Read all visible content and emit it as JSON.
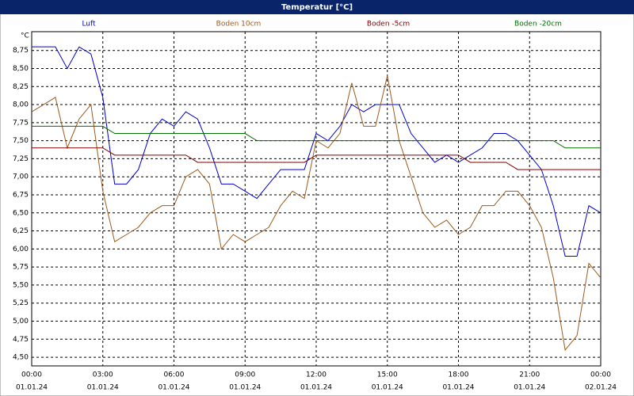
{
  "chart_data": {
    "type": "line",
    "title": "Temperatur [°C]",
    "y_label": "°C",
    "x": [
      0,
      0.5,
      1,
      1.5,
      2,
      2.5,
      3,
      3.5,
      4,
      4.5,
      5,
      5.5,
      6,
      6.5,
      7,
      7.5,
      8,
      8.5,
      9,
      9.5,
      10,
      10.5,
      11,
      11.5,
      12,
      12.5,
      13,
      13.5,
      14,
      14.5,
      15,
      15.5,
      16,
      16.5,
      17,
      17.5,
      18,
      18.5,
      19,
      19.5,
      20,
      20.5,
      21,
      21.5,
      22,
      22.5,
      23,
      23.5,
      24
    ],
    "series": [
      {
        "name": "Luft",
        "color": "#0000cc",
        "values": [
          8.8,
          8.8,
          8.8,
          8.5,
          8.8,
          8.7,
          8.1,
          6.9,
          6.9,
          7.1,
          7.6,
          7.8,
          7.7,
          7.9,
          7.8,
          7.4,
          6.9,
          6.9,
          6.8,
          6.7,
          6.9,
          7.1,
          7.1,
          7.1,
          7.6,
          7.5,
          7.7,
          8.0,
          7.9,
          8.0,
          8.0,
          8.0,
          7.6,
          7.4,
          7.2,
          7.3,
          7.2,
          7.3,
          7.4,
          7.6,
          7.6,
          7.5,
          7.3,
          7.1,
          6.6,
          5.9,
          5.9,
          6.6,
          6.5
        ]
      },
      {
        "name": "Boden 10cm",
        "color": "#9c5a1e",
        "values": [
          7.9,
          8.0,
          8.1,
          7.4,
          7.8,
          8.0,
          6.8,
          6.1,
          6.2,
          6.3,
          6.5,
          6.6,
          6.6,
          7.0,
          7.1,
          6.9,
          6.0,
          6.2,
          6.1,
          6.2,
          6.3,
          6.6,
          6.8,
          6.7,
          7.5,
          7.4,
          7.6,
          8.3,
          7.7,
          7.7,
          8.4,
          7.5,
          7.0,
          6.5,
          6.3,
          6.4,
          6.2,
          6.3,
          6.6,
          6.6,
          6.8,
          6.8,
          6.6,
          6.3,
          5.6,
          4.6,
          4.8,
          5.8,
          5.6
        ]
      },
      {
        "name": "Boden -5cm",
        "color": "#800000",
        "values": [
          7.4,
          7.4,
          7.4,
          7.4,
          7.4,
          7.4,
          7.4,
          7.3,
          7.3,
          7.3,
          7.3,
          7.3,
          7.3,
          7.3,
          7.2,
          7.2,
          7.2,
          7.2,
          7.2,
          7.2,
          7.2,
          7.2,
          7.2,
          7.2,
          7.3,
          7.3,
          7.3,
          7.3,
          7.3,
          7.3,
          7.3,
          7.3,
          7.3,
          7.3,
          7.3,
          7.3,
          7.3,
          7.2,
          7.2,
          7.2,
          7.2,
          7.1,
          7.1,
          7.1,
          7.1,
          7.1,
          7.1,
          7.1,
          7.1
        ]
      },
      {
        "name": "Boden -20cm",
        "color": "#007000",
        "values": [
          7.7,
          7.7,
          7.7,
          7.7,
          7.7,
          7.7,
          7.7,
          7.6,
          7.6,
          7.6,
          7.6,
          7.6,
          7.6,
          7.6,
          7.6,
          7.6,
          7.6,
          7.6,
          7.6,
          7.5,
          7.5,
          7.5,
          7.5,
          7.5,
          7.5,
          7.5,
          7.5,
          7.5,
          7.5,
          7.5,
          7.5,
          7.5,
          7.5,
          7.5,
          7.5,
          7.5,
          7.5,
          7.5,
          7.5,
          7.5,
          7.5,
          7.5,
          7.5,
          7.5,
          7.5,
          7.4,
          7.4,
          7.4,
          7.4
        ]
      }
    ],
    "xlim": [
      0,
      24
    ],
    "xticks": [
      {
        "value": 0,
        "label": "00:00",
        "date": "01.01.24"
      },
      {
        "value": 3,
        "label": "03:00",
        "date": "01.01.24"
      },
      {
        "value": 6,
        "label": "06:00",
        "date": "01.01.24"
      },
      {
        "value": 9,
        "label": "09:00",
        "date": "01.01.24"
      },
      {
        "value": 12,
        "label": "12:00",
        "date": "01.01.24"
      },
      {
        "value": 15,
        "label": "15:00",
        "date": "01.01.24"
      },
      {
        "value": 18,
        "label": "18:00",
        "date": "01.01.24"
      },
      {
        "value": 21,
        "label": "21:00",
        "date": "01.01.24"
      },
      {
        "value": 24,
        "label": "00:00",
        "date": "02.01.24"
      }
    ],
    "ylim": [
      4.38,
      9.01
    ],
    "yticks": [
      {
        "value": 4.5,
        "label": "4,50"
      },
      {
        "value": 4.75,
        "label": "4,75"
      },
      {
        "value": 5,
        "label": "5,00"
      },
      {
        "value": 5.25,
        "label": "5,25"
      },
      {
        "value": 5.5,
        "label": "5,50"
      },
      {
        "value": 5.75,
        "label": "5,75"
      },
      {
        "value": 6,
        "label": "6,00"
      },
      {
        "value": 6.25,
        "label": "6,25"
      },
      {
        "value": 6.5,
        "label": "6,50"
      },
      {
        "value": 6.75,
        "label": "6,75"
      },
      {
        "value": 7,
        "label": "7,00"
      },
      {
        "value": 7.25,
        "label": "7,25"
      },
      {
        "value": 7.5,
        "label": "7,50"
      },
      {
        "value": 7.75,
        "label": "7,75"
      },
      {
        "value": 8,
        "label": "8,00"
      },
      {
        "value": 8.25,
        "label": "8,25"
      },
      {
        "value": 8.5,
        "label": "8,50"
      },
      {
        "value": 8.75,
        "label": "8,75"
      }
    ],
    "grid": true
  }
}
